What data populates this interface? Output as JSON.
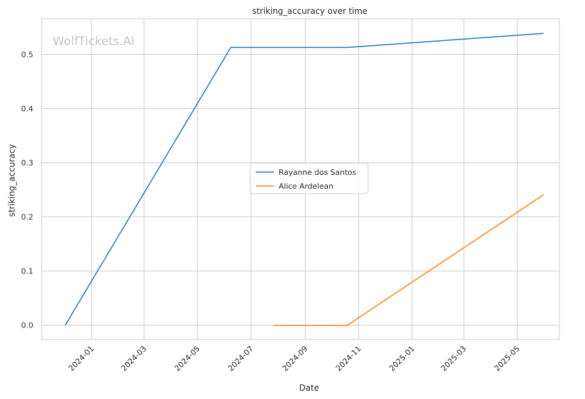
{
  "chart_data": {
    "type": "line",
    "title": "striking_accuracy over time",
    "xlabel": "Date",
    "ylabel": "striking_accuracy",
    "watermark": "WolfTickets.AI",
    "x_ticks": [
      "2024-01",
      "2024-03",
      "2024-05",
      "2024-07",
      "2024-09",
      "2024-11",
      "2025-01",
      "2025-03",
      "2025-05"
    ],
    "y_ticks": [
      "0.0",
      "0.1",
      "0.2",
      "0.3",
      "0.4",
      "0.5"
    ],
    "xlim": [
      "2023-11-05",
      "2025-06-18"
    ],
    "ylim": [
      -0.026,
      0.566
    ],
    "grid": true,
    "legend_position": "center",
    "series": [
      {
        "name": "Rayanne dos Santos",
        "color": "#1f77b4",
        "points": [
          {
            "x": "2023-12-02",
            "y": 0.0
          },
          {
            "x": "2024-06-08",
            "y": 0.513
          },
          {
            "x": "2024-10-19",
            "y": 0.513
          },
          {
            "x": "2025-05-31",
            "y": 0.539
          }
        ]
      },
      {
        "name": "Alice Ardelean",
        "color": "#ff7f0e",
        "points": [
          {
            "x": "2024-07-27",
            "y": 0.0
          },
          {
            "x": "2024-10-19",
            "y": 0.0
          },
          {
            "x": "2025-05-31",
            "y": 0.241
          }
        ]
      }
    ]
  }
}
